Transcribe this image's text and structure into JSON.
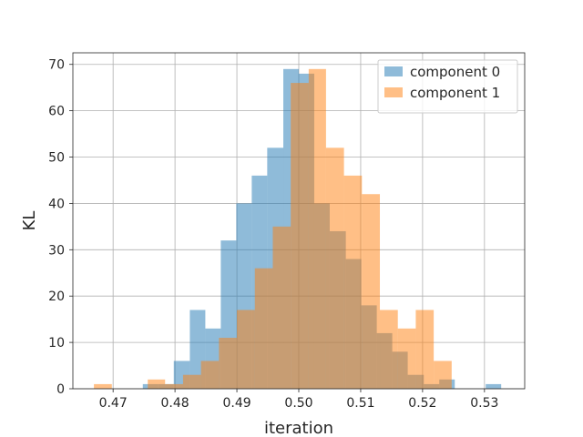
{
  "chart_data": {
    "type": "histogram",
    "xlabel": "iteration",
    "ylabel": "KL",
    "xlim": [
      0.4635,
      0.5365
    ],
    "ylim": [
      0,
      72.5
    ],
    "xticks": [
      0.47,
      0.48,
      0.49,
      0.5,
      0.51,
      0.52,
      0.53
    ],
    "xtick_labels": [
      "0.47",
      "0.48",
      "0.49",
      "0.50",
      "0.51",
      "0.52",
      "0.53"
    ],
    "yticks": [
      0,
      10,
      20,
      30,
      40,
      50,
      60,
      70
    ],
    "ytick_labels": [
      "0",
      "10",
      "20",
      "30",
      "40",
      "50",
      "60",
      "70"
    ],
    "grid": true,
    "legend_position": "top-right",
    "series": [
      {
        "name": "component 0",
        "color": "#1f77b4",
        "alpha": 0.5,
        "bin_edges": [
          0.4748,
          0.4773,
          0.4798,
          0.4824,
          0.4849,
          0.4874,
          0.4899,
          0.4924,
          0.4949,
          0.4975,
          0.5,
          0.5025,
          0.505,
          0.5076,
          0.5101,
          0.5126,
          0.5151,
          0.5176,
          0.5202,
          0.5227,
          0.5252,
          0.5277,
          0.5302,
          0.5327
        ],
        "counts": [
          1,
          1,
          6,
          17,
          13,
          32,
          40,
          46,
          52,
          69,
          68,
          40,
          34,
          28,
          18,
          12,
          8,
          3,
          1,
          2,
          0,
          0,
          1
        ]
      },
      {
        "name": "component 1",
        "color": "#ff7f0e",
        "alpha": 0.5,
        "bin_edges": [
          0.4669,
          0.4698,
          0.4727,
          0.4756,
          0.4784,
          0.4813,
          0.4842,
          0.4871,
          0.49,
          0.4929,
          0.4958,
          0.4987,
          0.5016,
          0.5044,
          0.5073,
          0.5102,
          0.5131,
          0.516,
          0.5189,
          0.5218,
          0.5247
        ],
        "counts": [
          1,
          0,
          0,
          2,
          1,
          3,
          6,
          11,
          17,
          26,
          35,
          66,
          69,
          52,
          46,
          42,
          17,
          13,
          17,
          6,
          1
        ]
      }
    ]
  }
}
